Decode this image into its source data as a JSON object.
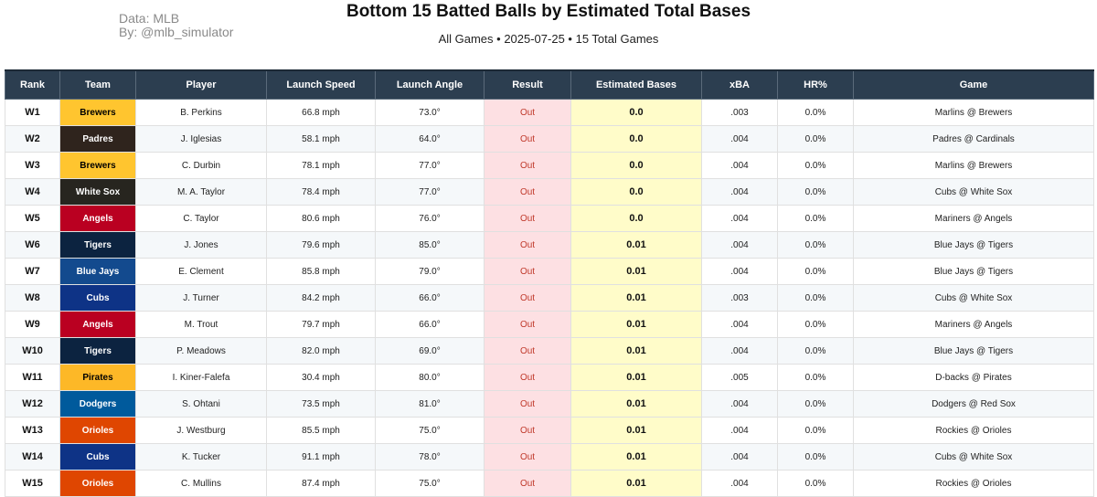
{
  "header": {
    "credit_line1": "Data: MLB",
    "credit_line2": "By: @mlb_simulator",
    "title": "Bottom 15 Batted Balls by Estimated Total Bases",
    "subtitle": "All Games • 2025-07-25 • 15 Total Games"
  },
  "columns": [
    "Rank",
    "Team",
    "Player",
    "Launch Speed",
    "Launch Angle",
    "Result",
    "Estimated Bases",
    "xBA",
    "HR%",
    "Game"
  ],
  "rows": [
    {
      "rank": "W1",
      "team": "Brewers",
      "team_color": "#FFC52F",
      "team_text": "#000000",
      "player": "B. Perkins",
      "speed": "66.8 mph",
      "angle": "73.0°",
      "result": "Out",
      "est": "0.0",
      "xba": ".003",
      "hr": "0.0%",
      "game": "Marlins @ Brewers"
    },
    {
      "rank": "W2",
      "team": "Padres",
      "team_color": "#2F241D",
      "team_text": "#ffffff",
      "player": "J. Iglesias",
      "speed": "58.1 mph",
      "angle": "64.0°",
      "result": "Out",
      "est": "0.0",
      "xba": ".004",
      "hr": "0.0%",
      "game": "Padres @ Cardinals"
    },
    {
      "rank": "W3",
      "team": "Brewers",
      "team_color": "#FFC52F",
      "team_text": "#000000",
      "player": "C. Durbin",
      "speed": "78.1 mph",
      "angle": "77.0°",
      "result": "Out",
      "est": "0.0",
      "xba": ".004",
      "hr": "0.0%",
      "game": "Marlins @ Brewers"
    },
    {
      "rank": "W4",
      "team": "White Sox",
      "team_color": "#27251F",
      "team_text": "#ffffff",
      "player": "M. A. Taylor",
      "speed": "78.4 mph",
      "angle": "77.0°",
      "result": "Out",
      "est": "0.0",
      "xba": ".004",
      "hr": "0.0%",
      "game": "Cubs @ White Sox"
    },
    {
      "rank": "W5",
      "team": "Angels",
      "team_color": "#BA0021",
      "team_text": "#ffffff",
      "player": "C. Taylor",
      "speed": "80.6 mph",
      "angle": "76.0°",
      "result": "Out",
      "est": "0.0",
      "xba": ".004",
      "hr": "0.0%",
      "game": "Mariners @ Angels"
    },
    {
      "rank": "W6",
      "team": "Tigers",
      "team_color": "#0C2340",
      "team_text": "#ffffff",
      "player": "J. Jones",
      "speed": "79.6 mph",
      "angle": "85.0°",
      "result": "Out",
      "est": "0.01",
      "xba": ".004",
      "hr": "0.0%",
      "game": "Blue Jays @ Tigers"
    },
    {
      "rank": "W7",
      "team": "Blue Jays",
      "team_color": "#134A8E",
      "team_text": "#ffffff",
      "player": "E. Clement",
      "speed": "85.8 mph",
      "angle": "79.0°",
      "result": "Out",
      "est": "0.01",
      "xba": ".004",
      "hr": "0.0%",
      "game": "Blue Jays @ Tigers"
    },
    {
      "rank": "W8",
      "team": "Cubs",
      "team_color": "#0E3386",
      "team_text": "#ffffff",
      "player": "J. Turner",
      "speed": "84.2 mph",
      "angle": "66.0°",
      "result": "Out",
      "est": "0.01",
      "xba": ".003",
      "hr": "0.0%",
      "game": "Cubs @ White Sox"
    },
    {
      "rank": "W9",
      "team": "Angels",
      "team_color": "#BA0021",
      "team_text": "#ffffff",
      "player": "M. Trout",
      "speed": "79.7 mph",
      "angle": "66.0°",
      "result": "Out",
      "est": "0.01",
      "xba": ".004",
      "hr": "0.0%",
      "game": "Mariners @ Angels"
    },
    {
      "rank": "W10",
      "team": "Tigers",
      "team_color": "#0C2340",
      "team_text": "#ffffff",
      "player": "P. Meadows",
      "speed": "82.0 mph",
      "angle": "69.0°",
      "result": "Out",
      "est": "0.01",
      "xba": ".004",
      "hr": "0.0%",
      "game": "Blue Jays @ Tigers"
    },
    {
      "rank": "W11",
      "team": "Pirates",
      "team_color": "#FDB827",
      "team_text": "#000000",
      "player": "I. Kiner-Falefa",
      "speed": "30.4 mph",
      "angle": "80.0°",
      "result": "Out",
      "est": "0.01",
      "xba": ".005",
      "hr": "0.0%",
      "game": "D-backs @ Pirates"
    },
    {
      "rank": "W12",
      "team": "Dodgers",
      "team_color": "#005A9C",
      "team_text": "#ffffff",
      "player": "S. Ohtani",
      "speed": "73.5 mph",
      "angle": "81.0°",
      "result": "Out",
      "est": "0.01",
      "xba": ".004",
      "hr": "0.0%",
      "game": "Dodgers @ Red Sox"
    },
    {
      "rank": "W13",
      "team": "Orioles",
      "team_color": "#DF4601",
      "team_text": "#ffffff",
      "player": "J. Westburg",
      "speed": "85.5 mph",
      "angle": "75.0°",
      "result": "Out",
      "est": "0.01",
      "xba": ".004",
      "hr": "0.0%",
      "game": "Rockies @ Orioles"
    },
    {
      "rank": "W14",
      "team": "Cubs",
      "team_color": "#0E3386",
      "team_text": "#ffffff",
      "player": "K. Tucker",
      "speed": "91.1 mph",
      "angle": "78.0°",
      "result": "Out",
      "est": "0.01",
      "xba": ".004",
      "hr": "0.0%",
      "game": "Cubs @ White Sox"
    },
    {
      "rank": "W15",
      "team": "Orioles",
      "team_color": "#DF4601",
      "team_text": "#ffffff",
      "player": "C. Mullins",
      "speed": "87.4 mph",
      "angle": "75.0°",
      "result": "Out",
      "est": "0.01",
      "xba": ".004",
      "hr": "0.0%",
      "game": "Rockies @ Orioles"
    }
  ]
}
